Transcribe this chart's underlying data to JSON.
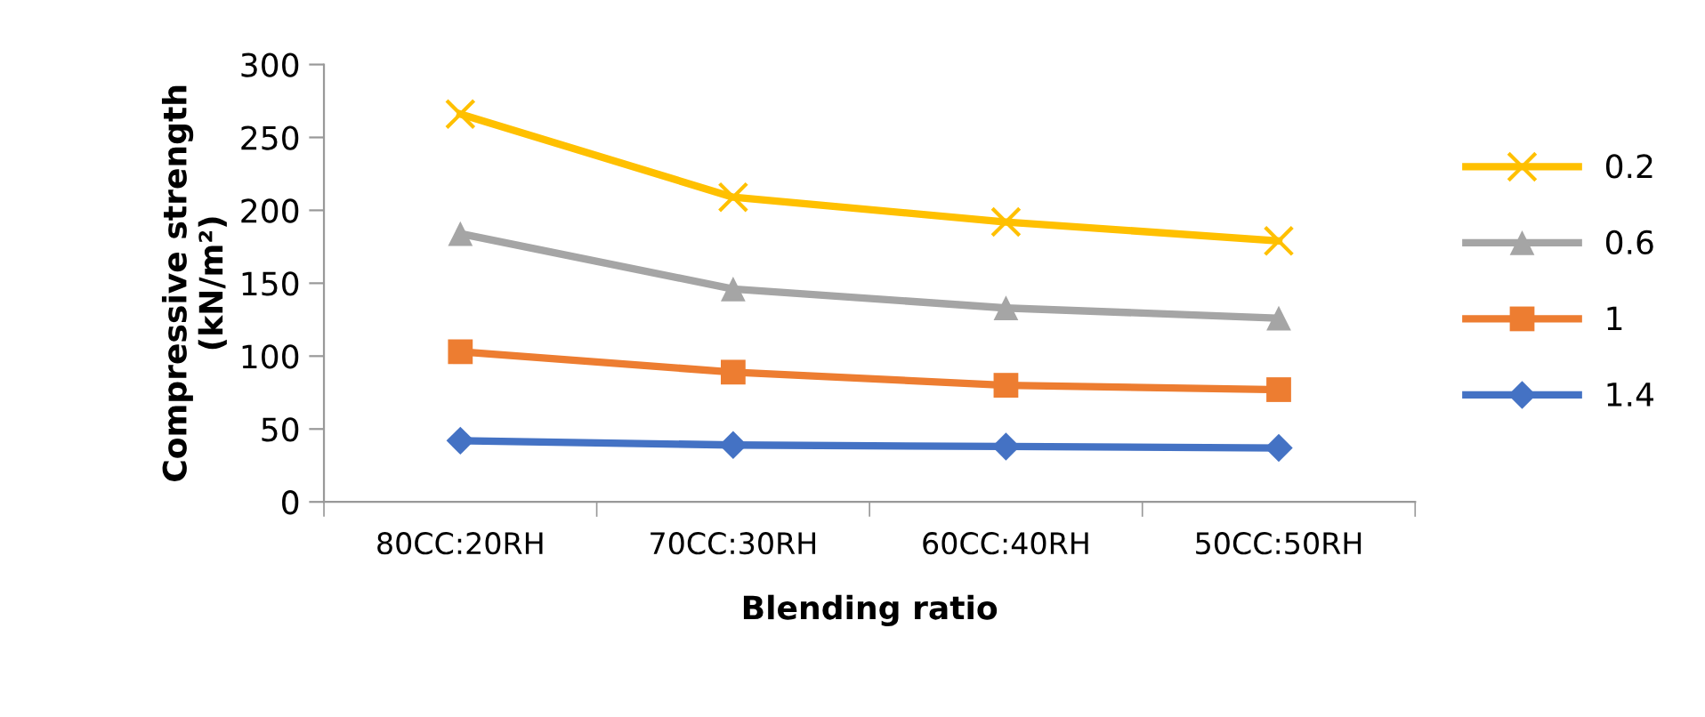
{
  "chart_data": {
    "type": "line",
    "xlabel": "Blending ratio",
    "ylabel": "Compressive strength\n(kN/m²)",
    "categories": [
      "80CC:20RH",
      "70CC:30RH",
      "60CC:40RH",
      "50CC:50RH"
    ],
    "series": [
      {
        "name": "0.2",
        "color": "#ffc000",
        "marker": "cross",
        "values": [
          266,
          209,
          192,
          179
        ]
      },
      {
        "name": "0.6",
        "color": "#a5a5a5",
        "marker": "triangle",
        "values": [
          184,
          146,
          133,
          126
        ]
      },
      {
        "name": "1",
        "color": "#ed7d31",
        "marker": "square",
        "values": [
          103,
          89,
          80,
          77
        ]
      },
      {
        "name": "1.4",
        "color": "#4472c4",
        "marker": "diamond",
        "values": [
          42,
          39,
          38,
          37
        ]
      }
    ],
    "ylim": [
      0,
      300
    ],
    "yticks": [
      0,
      50,
      100,
      150,
      200,
      250,
      300
    ],
    "grid": false,
    "legend": "right",
    "line_style": "solid"
  }
}
